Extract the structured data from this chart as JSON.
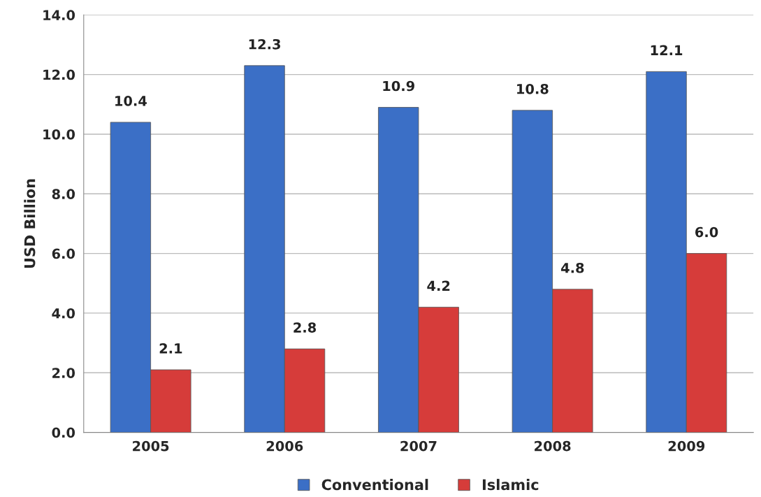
{
  "chart_data": {
    "type": "bar",
    "ylabel": "USD Billion",
    "categories": [
      "2005",
      "2006",
      "2007",
      "2008",
      "2009"
    ],
    "series": [
      {
        "name": "Conventional",
        "color": "#3b6fc6",
        "values": [
          10.4,
          12.3,
          10.9,
          10.8,
          12.1
        ],
        "value_labels": [
          "10.4",
          "12.3",
          "10.9",
          "10.8",
          "12.1"
        ]
      },
      {
        "name": "Islamic",
        "color": "#d63c3a",
        "values": [
          2.1,
          2.8,
          4.2,
          4.8,
          6.0
        ],
        "value_labels": [
          "2.1",
          "2.8",
          "4.2",
          "4.8",
          "6.0"
        ]
      }
    ],
    "ylim": [
      0,
      14
    ],
    "yticks": [
      {
        "value": 0,
        "label": "0.0"
      },
      {
        "value": 2,
        "label": "2.0"
      },
      {
        "value": 4,
        "label": "4.0"
      },
      {
        "value": 6,
        "label": "6.0"
      },
      {
        "value": 8,
        "label": "8.0"
      },
      {
        "value": 10,
        "label": "10.0"
      },
      {
        "value": 12,
        "label": "12.0"
      },
      {
        "value": 14,
        "label": "14.0"
      }
    ],
    "grid": "y",
    "legend": "bottom"
  }
}
